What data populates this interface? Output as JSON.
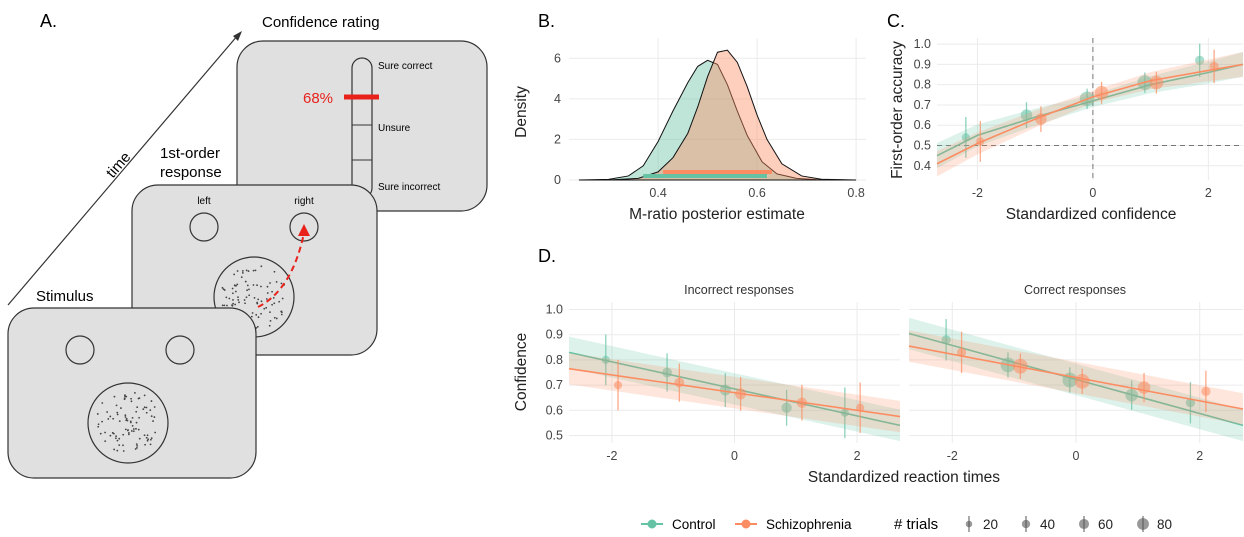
{
  "panel_labels": {
    "a": "A.",
    "b": "B.",
    "c": "C.",
    "d": "D."
  },
  "schematic": {
    "time_label": "time",
    "stimulus_label": "Stimulus",
    "response_label_line1": "1st-order",
    "response_label_line2": "response",
    "confidence_label": "Confidence rating",
    "left_label": "left",
    "right_label": "right",
    "scale_top": "Sure correct",
    "scale_mid": "Unsure",
    "scale_bottom": "Sure incorrect",
    "rating_value": "68%",
    "colors": {
      "card": "#e0e0e0",
      "highlight": "#e8211b"
    },
    "icons": [
      "arrow-icon",
      "triangle-cursor-icon",
      "dot-cloud-icon"
    ]
  },
  "legend": {
    "control": "Control",
    "schizophrenia": "Schizophrenia",
    "trials_title": "# trials",
    "trials": [
      "20",
      "40",
      "60",
      "80"
    ]
  },
  "colors": {
    "control": "#66c2a5",
    "schizophrenia": "#fc8d62"
  },
  "chart_data": [
    {
      "id": "B",
      "type": "area",
      "title": "",
      "xlabel": "M-ratio posterior estimate",
      "ylabel": "Density",
      "xlim": [
        0.22,
        0.82
      ],
      "ylim": [
        0,
        7
      ],
      "xticks": [
        0.4,
        0.6,
        0.8
      ],
      "yticks": [
        0,
        2,
        4,
        6
      ],
      "grid": true,
      "series": [
        {
          "name": "Control",
          "x": [
            0.24,
            0.3,
            0.34,
            0.37,
            0.4,
            0.43,
            0.46,
            0.48,
            0.5,
            0.52,
            0.54,
            0.56,
            0.58,
            0.61,
            0.64,
            0.68,
            0.72,
            0.78
          ],
          "y": [
            0,
            0.03,
            0.2,
            0.7,
            1.9,
            3.4,
            4.8,
            5.6,
            5.9,
            5.7,
            4.7,
            3.4,
            2.2,
            0.9,
            0.3,
            0.08,
            0.02,
            0
          ],
          "hdi": [
            0.37,
            0.62
          ]
        },
        {
          "name": "Schizophrenia",
          "x": [
            0.3,
            0.36,
            0.4,
            0.43,
            0.46,
            0.48,
            0.5,
            0.52,
            0.54,
            0.56,
            0.58,
            0.6,
            0.62,
            0.65,
            0.69,
            0.73,
            0.8
          ],
          "y": [
            0,
            0.08,
            0.4,
            1.1,
            2.3,
            3.6,
            5.1,
            6.3,
            6.4,
            5.8,
            4.6,
            3.2,
            2.0,
            0.8,
            0.2,
            0.04,
            0
          ],
          "hdi": [
            0.41,
            0.63
          ]
        }
      ]
    },
    {
      "id": "C",
      "type": "scatter",
      "xlabel": "Standardized confidence",
      "ylabel": "First-order accuracy",
      "xlim": [
        -2.7,
        2.6
      ],
      "ylim": [
        0.33,
        1.03
      ],
      "xticks": [
        -2,
        0,
        2
      ],
      "yticks": [
        0.4,
        0.5,
        0.6,
        0.7,
        0.8,
        0.9,
        1.0
      ],
      "ytick_labels": [
        "0.4",
        "0.5",
        "0.6",
        "0.7",
        "0.8",
        "0.9",
        "1.0"
      ],
      "reference_lines": {
        "x": 0,
        "y": 0.5
      },
      "series": [
        {
          "name": "Control",
          "points": [
            {
              "x": -2.2,
              "y": 0.54,
              "n": 20
            },
            {
              "x": -1.15,
              "y": 0.65,
              "n": 50
            },
            {
              "x": -0.1,
              "y": 0.73,
              "n": 80
            },
            {
              "x": 0.9,
              "y": 0.81,
              "n": 80
            },
            {
              "x": 1.85,
              "y": 0.92,
              "n": 30
            }
          ],
          "fit": [
            [
              -2.7,
              0.45
            ],
            [
              -2,
              0.55
            ],
            [
              -1,
              0.64
            ],
            [
              0,
              0.72
            ],
            [
              1,
              0.8
            ],
            [
              2,
              0.86
            ],
            [
              2.6,
              0.9
            ]
          ]
        },
        {
          "name": "Schizophrenia",
          "points": [
            {
              "x": -1.95,
              "y": 0.52,
              "n": 20
            },
            {
              "x": -0.9,
              "y": 0.63,
              "n": 50
            },
            {
              "x": 0.15,
              "y": 0.76,
              "n": 70
            },
            {
              "x": 1.1,
              "y": 0.81,
              "n": 70
            },
            {
              "x": 2.1,
              "y": 0.89,
              "n": 30
            }
          ],
          "fit": [
            [
              -2.7,
              0.41
            ],
            [
              -2,
              0.51
            ],
            [
              -1,
              0.63
            ],
            [
              0,
              0.74
            ],
            [
              1,
              0.82
            ],
            [
              2,
              0.87
            ],
            [
              2.6,
              0.9
            ]
          ]
        }
      ]
    },
    {
      "id": "D",
      "type": "scatter",
      "xlabel": "Standardized reaction times",
      "ylabel": "Confidence",
      "xlim": [
        -2.7,
        2.7
      ],
      "ylim": [
        0.47,
        1.03
      ],
      "xticks": [
        -2,
        0,
        2
      ],
      "yticks": [
        0.5,
        0.6,
        0.7,
        0.8,
        0.9,
        1.0
      ],
      "ytick_labels": [
        "0.5",
        "0.6",
        "0.7",
        "0.8",
        "0.9",
        "1.0"
      ],
      "facets": [
        {
          "title": "Incorrect responses",
          "series": [
            {
              "name": "Control",
              "points": [
                {
                  "x": -2.1,
                  "y": 0.8,
                  "n": 20
                },
                {
                  "x": -1.1,
                  "y": 0.75,
                  "n": 35
                },
                {
                  "x": -0.15,
                  "y": 0.68,
                  "n": 45
                },
                {
                  "x": 0.85,
                  "y": 0.61,
                  "n": 40
                },
                {
                  "x": 1.8,
                  "y": 0.59,
                  "n": 20
                }
              ],
              "fit": [
                [
                  -2.7,
                  0.83
                ],
                [
                  2.7,
                  0.54
                ]
              ]
            },
            {
              "name": "Schizophrenia",
              "points": [
                {
                  "x": -1.9,
                  "y": 0.7,
                  "n": 20
                },
                {
                  "x": -0.9,
                  "y": 0.71,
                  "n": 35
                },
                {
                  "x": 0.1,
                  "y": 0.665,
                  "n": 45
                },
                {
                  "x": 1.1,
                  "y": 0.63,
                  "n": 40
                },
                {
                  "x": 2.05,
                  "y": 0.61,
                  "n": 20
                }
              ],
              "fit": [
                [
                  -2.7,
                  0.765
                ],
                [
                  2.7,
                  0.575
                ]
              ]
            }
          ]
        },
        {
          "title": "Correct responses",
          "series": [
            {
              "name": "Control",
              "points": [
                {
                  "x": -2.1,
                  "y": 0.88,
                  "n": 30
                },
                {
                  "x": -1.1,
                  "y": 0.78,
                  "n": 80
                },
                {
                  "x": -0.1,
                  "y": 0.72,
                  "n": 80
                },
                {
                  "x": 0.9,
                  "y": 0.66,
                  "n": 60
                },
                {
                  "x": 1.85,
                  "y": 0.63,
                  "n": 30
                }
              ],
              "fit": [
                [
                  -2.7,
                  0.905
                ],
                [
                  2.7,
                  0.54
                ]
              ]
            },
            {
              "name": "Schizophrenia",
              "points": [
                {
                  "x": -1.85,
                  "y": 0.83,
                  "n": 30
                },
                {
                  "x": -0.9,
                  "y": 0.775,
                  "n": 80
                },
                {
                  "x": 0.1,
                  "y": 0.715,
                  "n": 80
                },
                {
                  "x": 1.1,
                  "y": 0.69,
                  "n": 60
                },
                {
                  "x": 2.1,
                  "y": 0.675,
                  "n": 30
                }
              ],
              "fit": [
                [
                  -2.7,
                  0.855
                ],
                [
                  2.7,
                  0.605
                ]
              ]
            }
          ]
        }
      ]
    }
  ]
}
